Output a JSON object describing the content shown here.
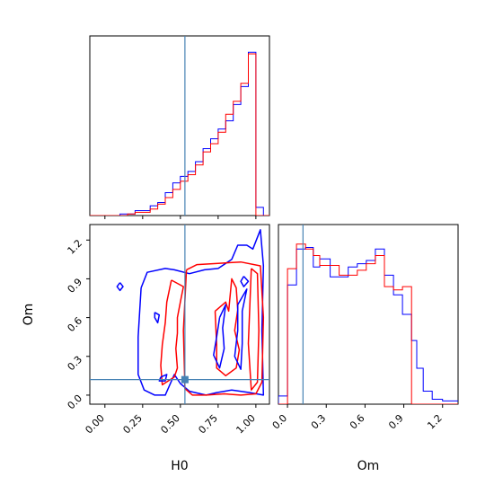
{
  "chart_data": {
    "type": "corner",
    "parameters": [
      "H0",
      "Om"
    ],
    "truth": {
      "H0": 0.53,
      "Om": 0.12
    },
    "colors": {
      "series_a": "#0000ff",
      "series_b": "#ff0000",
      "truth": "#4682b4"
    },
    "xlabels": {
      "H0": "H0",
      "Om": "Om"
    },
    "ylabels": {
      "Om": "Om"
    },
    "ticks": {
      "H0": [
        0.0,
        0.25,
        0.5,
        0.75,
        1.0
      ],
      "Om": [
        0.0,
        0.3,
        0.6,
        0.9,
        1.2
      ]
    },
    "tick_labels": {
      "H0": [
        "0.00",
        "0.25",
        "0.50",
        "0.75",
        "1.00"
      ],
      "Om": [
        "0.0",
        "0.3",
        "0.6",
        "0.9",
        "1.2"
      ]
    },
    "ranges": {
      "H0": [
        -0.1,
        1.09
      ],
      "Om": [
        -0.07,
        1.32
      ]
    },
    "hist_H0": {
      "bin_edges": [
        -0.1,
        0.0,
        0.1,
        0.15,
        0.2,
        0.3,
        0.35,
        0.4,
        0.45,
        0.5,
        0.55,
        0.6,
        0.65,
        0.7,
        0.75,
        0.8,
        0.85,
        0.9,
        0.95,
        1.0,
        1.05,
        1.09
      ],
      "series": [
        {
          "color_key": "series_a",
          "counts": [
            0.0,
            0.0,
            0.01,
            0.01,
            0.03,
            0.06,
            0.08,
            0.14,
            0.2,
            0.24,
            0.27,
            0.33,
            0.41,
            0.47,
            0.53,
            0.58,
            0.68,
            0.79,
            1.0,
            0.05,
            0.0
          ]
        },
        {
          "color_key": "series_b",
          "counts": [
            0.0,
            0.0,
            0.0,
            0.01,
            0.02,
            0.04,
            0.07,
            0.11,
            0.16,
            0.21,
            0.25,
            0.31,
            0.39,
            0.44,
            0.51,
            0.62,
            0.7,
            0.81,
            0.99,
            0.0,
            0.0
          ]
        }
      ]
    },
    "hist_Om": {
      "bin_edges": [
        -0.07,
        0.0,
        0.07,
        0.14,
        0.2,
        0.25,
        0.33,
        0.4,
        0.47,
        0.54,
        0.61,
        0.68,
        0.75,
        0.82,
        0.89,
        0.96,
        1.0,
        1.05,
        1.12,
        1.2,
        1.32
      ],
      "series": [
        {
          "color_key": "series_a",
          "counts": [
            0.05,
            0.73,
            0.95,
            0.96,
            0.84,
            0.89,
            0.78,
            0.78,
            0.84,
            0.86,
            0.88,
            0.95,
            0.79,
            0.67,
            0.55,
            0.39,
            0.22,
            0.08,
            0.03,
            0.02
          ]
        },
        {
          "color_key": "series_b",
          "counts": [
            0.0,
            0.83,
            0.98,
            0.95,
            0.91,
            0.85,
            0.85,
            0.79,
            0.79,
            0.82,
            0.86,
            0.91,
            0.72,
            0.7,
            0.72,
            0.0,
            0.0,
            0.0,
            0.0,
            0.0
          ]
        }
      ]
    },
    "contours_H0_Om": [
      {
        "color_key": "series_a",
        "points": [
          [
            0.24,
            0.83
          ],
          [
            0.28,
            0.95
          ],
          [
            0.4,
            0.98
          ],
          [
            0.46,
            0.97
          ],
          [
            0.56,
            0.94
          ],
          [
            0.66,
            0.97
          ],
          [
            0.75,
            0.98
          ],
          [
            0.84,
            1.05
          ],
          [
            0.88,
            1.16
          ],
          [
            0.94,
            1.16
          ],
          [
            0.98,
            1.13
          ],
          [
            1.03,
            1.28
          ],
          [
            1.05,
            1.0
          ],
          [
            1.04,
            0.5
          ],
          [
            1.05,
            0.0
          ],
          [
            0.96,
            0.02
          ],
          [
            0.84,
            0.04
          ],
          [
            0.74,
            0.02
          ],
          [
            0.67,
            0.0
          ],
          [
            0.56,
            0.03
          ],
          [
            0.5,
            0.09
          ],
          [
            0.46,
            0.16
          ],
          [
            0.4,
            0.0
          ],
          [
            0.33,
            0.0
          ],
          [
            0.26,
            0.04
          ],
          [
            0.22,
            0.16
          ],
          [
            0.22,
            0.45
          ],
          [
            0.24,
            0.83
          ]
        ]
      },
      {
        "color_key": "series_b",
        "points": [
          [
            0.54,
            0.97
          ],
          [
            0.61,
            1.01
          ],
          [
            0.75,
            1.02
          ],
          [
            0.9,
            1.03
          ],
          [
            1.03,
            1.0
          ],
          [
            1.05,
            0.6
          ],
          [
            1.04,
            0.1
          ],
          [
            1.0,
            0.01
          ],
          [
            0.9,
            0.0
          ],
          [
            0.79,
            0.01
          ],
          [
            0.67,
            0.0
          ],
          [
            0.58,
            0.0
          ],
          [
            0.53,
            0.05
          ],
          [
            0.52,
            0.5
          ],
          [
            0.54,
            0.97
          ]
        ]
      },
      {
        "color_key": "series_b",
        "points": [
          [
            0.97,
            0.98
          ],
          [
            1.01,
            0.94
          ],
          [
            1.02,
            0.5
          ],
          [
            1.01,
            0.1
          ],
          [
            0.97,
            0.04
          ],
          [
            0.95,
            0.4
          ],
          [
            0.97,
            0.98
          ]
        ]
      },
      {
        "color_key": "series_b",
        "points": [
          [
            0.44,
            0.89
          ],
          [
            0.52,
            0.84
          ],
          [
            0.5,
            0.72
          ],
          [
            0.48,
            0.6
          ],
          [
            0.48,
            0.48
          ],
          [
            0.47,
            0.36
          ],
          [
            0.48,
            0.21
          ],
          [
            0.46,
            0.14
          ],
          [
            0.38,
            0.08
          ],
          [
            0.37,
            0.23
          ],
          [
            0.38,
            0.39
          ],
          [
            0.4,
            0.56
          ],
          [
            0.41,
            0.72
          ],
          [
            0.44,
            0.89
          ]
        ]
      },
      {
        "color_key": "series_b",
        "points": [
          [
            0.73,
            0.65
          ],
          [
            0.8,
            0.72
          ],
          [
            0.82,
            0.65
          ],
          [
            0.84,
            0.9
          ],
          [
            0.87,
            0.83
          ],
          [
            0.88,
            0.66
          ],
          [
            0.86,
            0.5
          ],
          [
            0.89,
            0.35
          ],
          [
            0.87,
            0.21
          ],
          [
            0.8,
            0.15
          ],
          [
            0.74,
            0.21
          ],
          [
            0.74,
            0.39
          ],
          [
            0.73,
            0.65
          ]
        ]
      },
      {
        "color_key": "series_a",
        "points": [
          [
            0.76,
            0.6
          ],
          [
            0.8,
            0.7
          ],
          [
            0.78,
            0.52
          ],
          [
            0.79,
            0.36
          ],
          [
            0.76,
            0.21
          ],
          [
            0.72,
            0.31
          ],
          [
            0.74,
            0.45
          ],
          [
            0.76,
            0.6
          ]
        ]
      },
      {
        "color_key": "series_a",
        "points": [
          [
            0.88,
            0.7
          ],
          [
            0.94,
            0.82
          ],
          [
            0.91,
            0.65
          ],
          [
            0.91,
            0.4
          ],
          [
            0.9,
            0.2
          ],
          [
            0.86,
            0.3
          ],
          [
            0.88,
            0.5
          ],
          [
            0.88,
            0.7
          ]
        ]
      },
      {
        "color_key": "series_a",
        "points": [
          [
            0.92,
            0.92
          ],
          [
            0.95,
            0.88
          ],
          [
            0.92,
            0.84
          ],
          [
            0.9,
            0.88
          ],
          [
            0.92,
            0.92
          ]
        ]
      },
      {
        "color_key": "series_a",
        "points": [
          [
            0.1,
            0.87
          ],
          [
            0.12,
            0.84
          ],
          [
            0.1,
            0.81
          ],
          [
            0.08,
            0.84
          ],
          [
            0.1,
            0.87
          ]
        ]
      },
      {
        "color_key": "series_a",
        "points": [
          [
            0.33,
            0.64
          ],
          [
            0.36,
            0.62
          ],
          [
            0.35,
            0.56
          ],
          [
            0.33,
            0.6
          ],
          [
            0.33,
            0.64
          ]
        ]
      },
      {
        "color_key": "series_a",
        "points": [
          [
            0.37,
            0.14
          ],
          [
            0.41,
            0.16
          ],
          [
            0.4,
            0.11
          ],
          [
            0.36,
            0.11
          ],
          [
            0.37,
            0.14
          ]
        ]
      }
    ]
  }
}
